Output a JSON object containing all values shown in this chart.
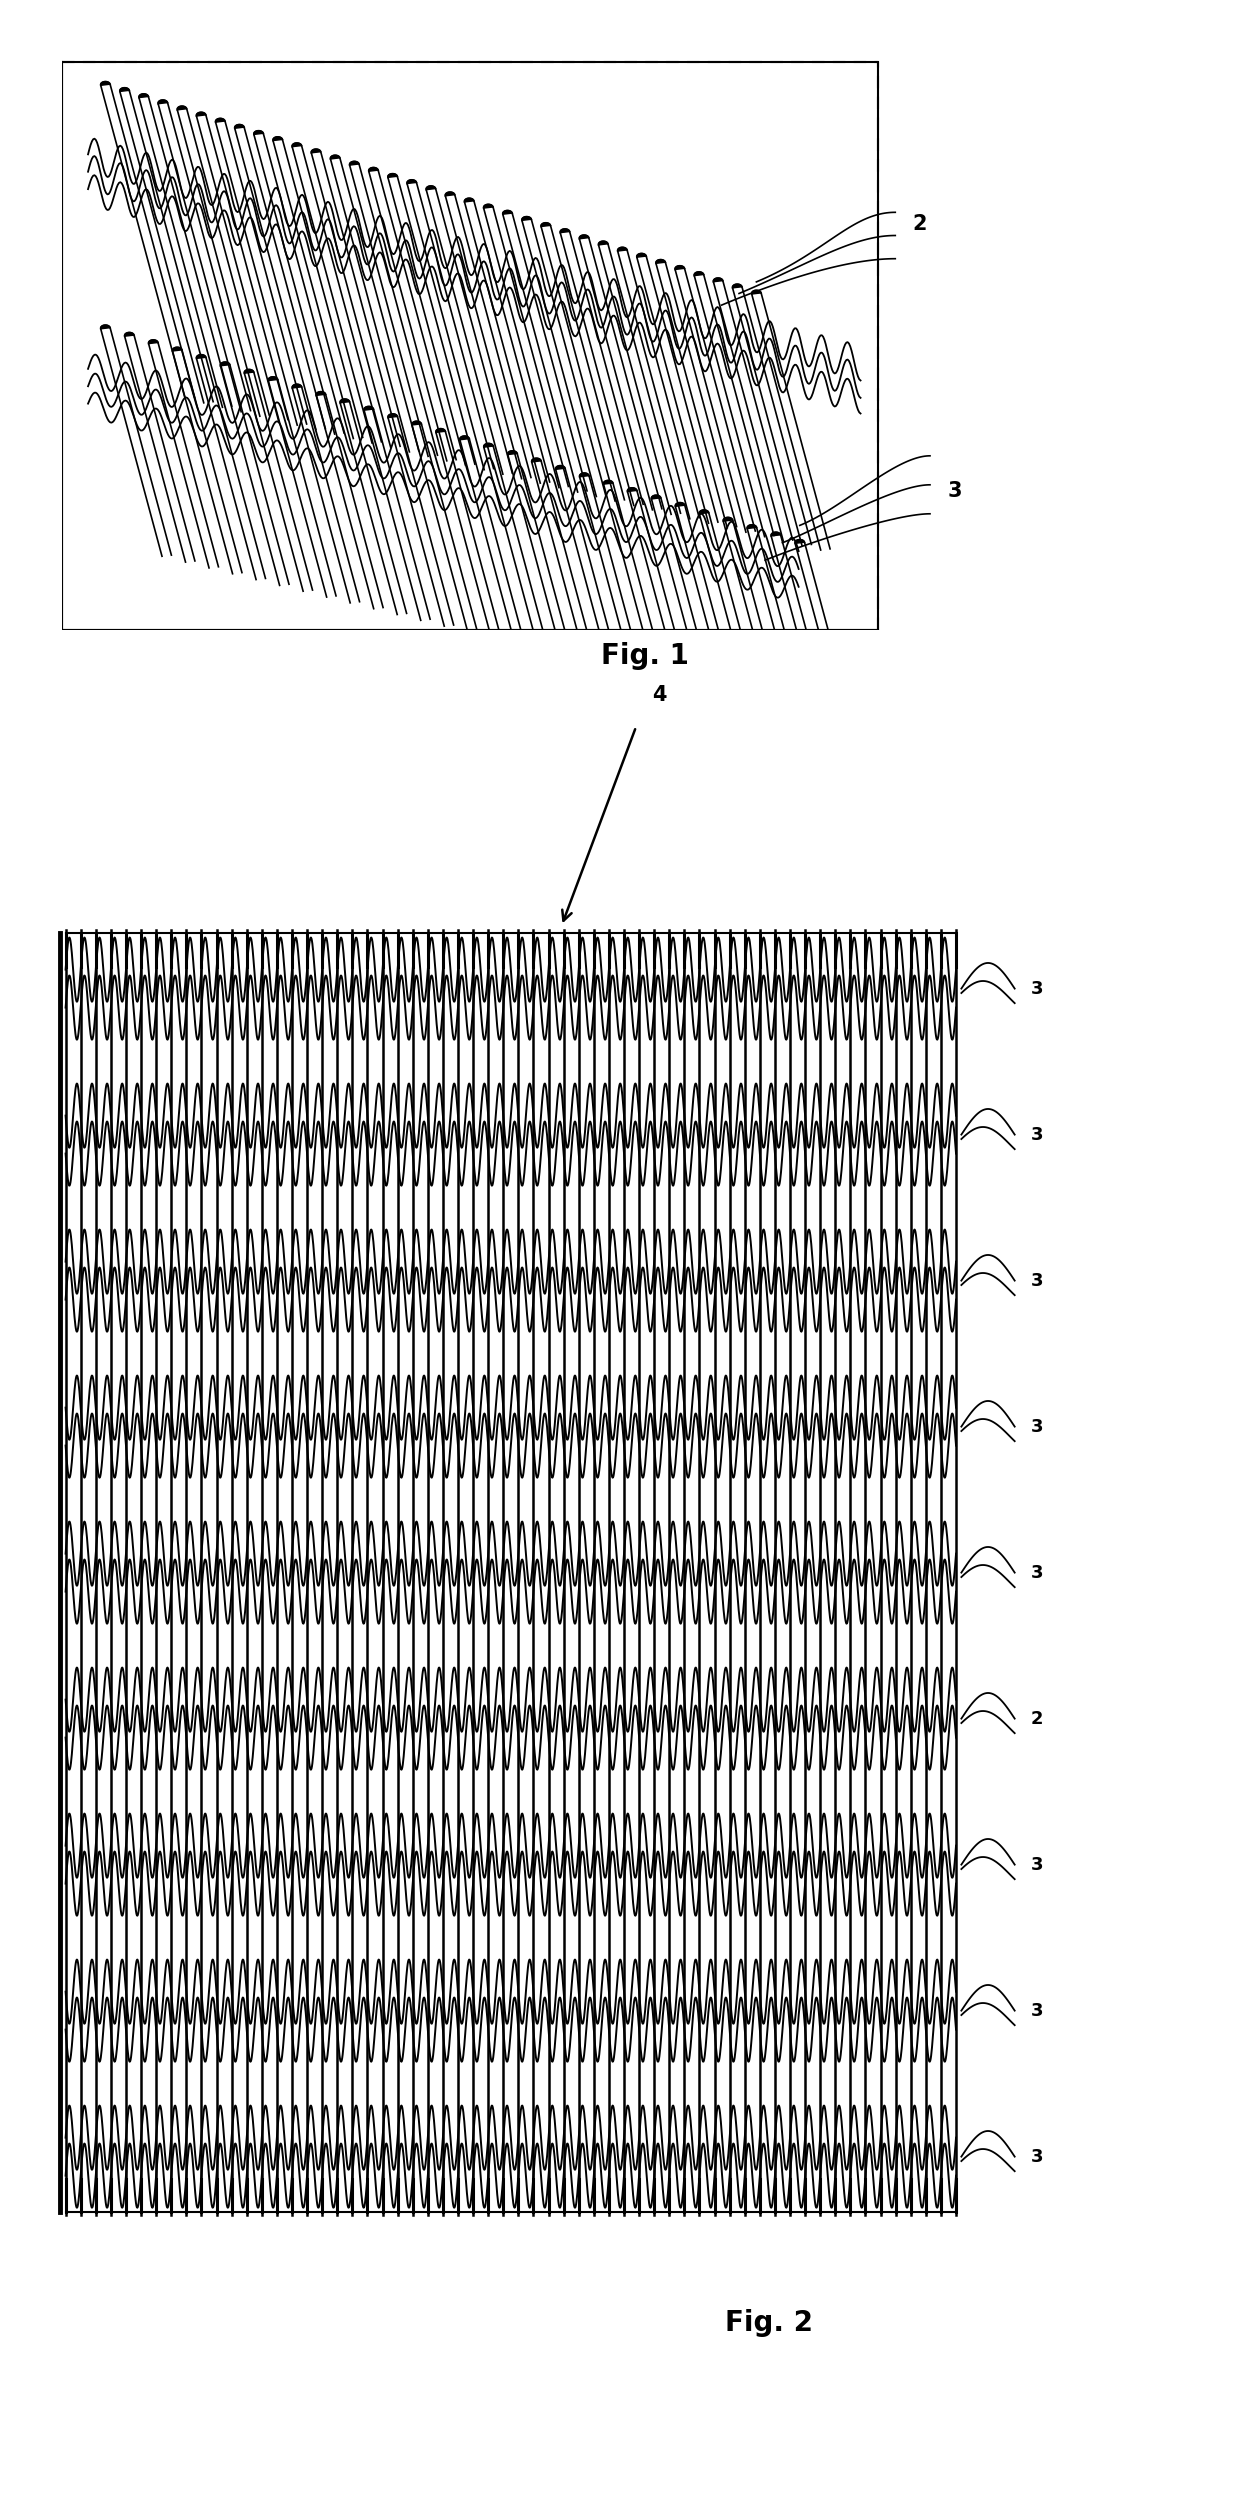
{
  "fig_width": 12.4,
  "fig_height": 24.99,
  "background_color": "#ffffff",
  "fig1": {
    "label": "Fig. 1",
    "n_tubes_upper": 35,
    "n_tubes_lower": 30,
    "label_2": "2",
    "label_3": "3"
  },
  "fig2": {
    "label": "Fig. 2",
    "label_4": "4",
    "label_2": "2",
    "label_3": "3",
    "n_rows": 9,
    "n_vert": 60
  }
}
